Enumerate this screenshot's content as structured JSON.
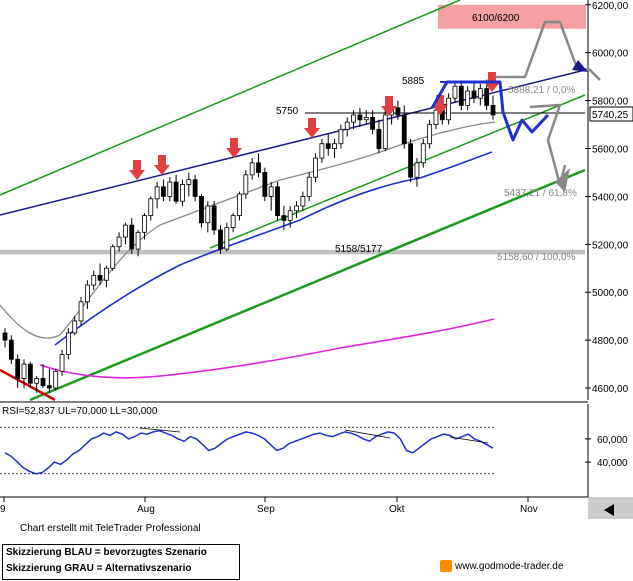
{
  "chart_data": [
    {
      "type": "line",
      "description_kind": "candlestick-price-chart",
      "x_ticks": [
        "9",
        "Aug",
        "Sep",
        "Okt",
        "Nov"
      ],
      "y_ticks": [
        "6200,00",
        "6000,00",
        "5800,00",
        "5600,00",
        "5400,00",
        "5200,00",
        "5000,00",
        "4800,00",
        "4600,00"
      ],
      "ylim": [
        4550,
        6220
      ],
      "last_price_label": "5740,25",
      "zones": [
        {
          "label": "6100/6200",
          "from": 6100,
          "to": 6200,
          "color": "#f08080"
        },
        {
          "label": "5158/5177",
          "from": 5158,
          "to": 5177,
          "color": "#c0c0c0"
        }
      ],
      "level_labels": [
        {
          "label": "5885",
          "value": 5885
        },
        {
          "label": "5750",
          "value": 5750
        }
      ],
      "fib_labels": [
        {
          "label": "5888,21 / 0,0%",
          "value": 5888.21
        },
        {
          "label": "5437,21 / 61,8%",
          "value": 5437.21
        },
        {
          "label": "5158,60 / 100,0%",
          "value": 5158.6
        }
      ],
      "moving_averages": [
        {
          "name": "grey",
          "color": "#888888"
        },
        {
          "name": "blue",
          "color": "#1f2fd0"
        },
        {
          "name": "magenta",
          "color": "#e020e0"
        }
      ],
      "candles": [
        {
          "o": 4830,
          "h": 4850,
          "l": 4770,
          "c": 4800
        },
        {
          "o": 4800,
          "h": 4820,
          "l": 4700,
          "c": 4720
        },
        {
          "o": 4720,
          "h": 4740,
          "l": 4600,
          "c": 4640
        },
        {
          "o": 4640,
          "h": 4720,
          "l": 4600,
          "c": 4700
        },
        {
          "o": 4700,
          "h": 4710,
          "l": 4600,
          "c": 4620
        },
        {
          "o": 4620,
          "h": 4650,
          "l": 4580,
          "c": 4640
        },
        {
          "o": 4640,
          "h": 4700,
          "l": 4600,
          "c": 4610
        },
        {
          "o": 4610,
          "h": 4680,
          "l": 4580,
          "c": 4600
        },
        {
          "o": 4600,
          "h": 4680,
          "l": 4590,
          "c": 4670
        },
        {
          "o": 4670,
          "h": 4760,
          "l": 4650,
          "c": 4740
        },
        {
          "o": 4740,
          "h": 4850,
          "l": 4720,
          "c": 4830
        },
        {
          "o": 4830,
          "h": 4900,
          "l": 4820,
          "c": 4880
        },
        {
          "o": 4880,
          "h": 4980,
          "l": 4860,
          "c": 4960
        },
        {
          "o": 4960,
          "h": 5050,
          "l": 4930,
          "c": 5030
        },
        {
          "o": 5030,
          "h": 5090,
          "l": 5010,
          "c": 5070
        },
        {
          "o": 5070,
          "h": 5120,
          "l": 5030,
          "c": 5050
        },
        {
          "o": 5050,
          "h": 5110,
          "l": 5020,
          "c": 5100
        },
        {
          "o": 5100,
          "h": 5200,
          "l": 5090,
          "c": 5190
        },
        {
          "o": 5190,
          "h": 5250,
          "l": 5170,
          "c": 5230
        },
        {
          "o": 5230,
          "h": 5290,
          "l": 5200,
          "c": 5280
        },
        {
          "o": 5280,
          "h": 5310,
          "l": 5160,
          "c": 5180
        },
        {
          "o": 5180,
          "h": 5260,
          "l": 5150,
          "c": 5250
        },
        {
          "o": 5250,
          "h": 5330,
          "l": 5220,
          "c": 5320
        },
        {
          "o": 5320,
          "h": 5400,
          "l": 5300,
          "c": 5390
        },
        {
          "o": 5390,
          "h": 5460,
          "l": 5350,
          "c": 5440
        },
        {
          "o": 5440,
          "h": 5470,
          "l": 5380,
          "c": 5400
        },
        {
          "o": 5400,
          "h": 5480,
          "l": 5380,
          "c": 5460
        },
        {
          "o": 5460,
          "h": 5490,
          "l": 5370,
          "c": 5380
        },
        {
          "o": 5380,
          "h": 5470,
          "l": 5360,
          "c": 5450
        },
        {
          "o": 5450,
          "h": 5500,
          "l": 5400,
          "c": 5470
        },
        {
          "o": 5470,
          "h": 5490,
          "l": 5380,
          "c": 5400
        },
        {
          "o": 5400,
          "h": 5410,
          "l": 5270,
          "c": 5290
        },
        {
          "o": 5290,
          "h": 5380,
          "l": 5250,
          "c": 5360
        },
        {
          "o": 5360,
          "h": 5380,
          "l": 5240,
          "c": 5260
        },
        {
          "o": 5260,
          "h": 5280,
          "l": 5160,
          "c": 5180
        },
        {
          "o": 5180,
          "h": 5290,
          "l": 5170,
          "c": 5270
        },
        {
          "o": 5270,
          "h": 5330,
          "l": 5250,
          "c": 5320
        },
        {
          "o": 5320,
          "h": 5420,
          "l": 5300,
          "c": 5410
        },
        {
          "o": 5410,
          "h": 5510,
          "l": 5390,
          "c": 5490
        },
        {
          "o": 5490,
          "h": 5560,
          "l": 5470,
          "c": 5540
        },
        {
          "o": 5540,
          "h": 5580,
          "l": 5480,
          "c": 5500
        },
        {
          "o": 5500,
          "h": 5520,
          "l": 5380,
          "c": 5400
        },
        {
          "o": 5400,
          "h": 5460,
          "l": 5340,
          "c": 5440
        },
        {
          "o": 5440,
          "h": 5460,
          "l": 5300,
          "c": 5320
        },
        {
          "o": 5320,
          "h": 5360,
          "l": 5260,
          "c": 5300
        },
        {
          "o": 5300,
          "h": 5360,
          "l": 5270,
          "c": 5340
        },
        {
          "o": 5340,
          "h": 5380,
          "l": 5310,
          "c": 5360
        },
        {
          "o": 5360,
          "h": 5420,
          "l": 5340,
          "c": 5400
        },
        {
          "o": 5400,
          "h": 5500,
          "l": 5380,
          "c": 5480
        },
        {
          "o": 5480,
          "h": 5580,
          "l": 5460,
          "c": 5560
        },
        {
          "o": 5560,
          "h": 5640,
          "l": 5540,
          "c": 5620
        },
        {
          "o": 5620,
          "h": 5660,
          "l": 5570,
          "c": 5600
        },
        {
          "o": 5600,
          "h": 5640,
          "l": 5560,
          "c": 5620
        },
        {
          "o": 5620,
          "h": 5700,
          "l": 5600,
          "c": 5680
        },
        {
          "o": 5680,
          "h": 5730,
          "l": 5650,
          "c": 5710
        },
        {
          "o": 5710,
          "h": 5760,
          "l": 5680,
          "c": 5740
        },
        {
          "o": 5740,
          "h": 5770,
          "l": 5690,
          "c": 5720
        },
        {
          "o": 5720,
          "h": 5760,
          "l": 5700,
          "c": 5730
        },
        {
          "o": 5730,
          "h": 5760,
          "l": 5660,
          "c": 5680
        },
        {
          "o": 5680,
          "h": 5720,
          "l": 5580,
          "c": 5600
        },
        {
          "o": 5600,
          "h": 5760,
          "l": 5590,
          "c": 5740
        },
        {
          "o": 5740,
          "h": 5790,
          "l": 5700,
          "c": 5770
        },
        {
          "o": 5770,
          "h": 5800,
          "l": 5720,
          "c": 5740
        },
        {
          "o": 5740,
          "h": 5780,
          "l": 5600,
          "c": 5620
        },
        {
          "o": 5620,
          "h": 5640,
          "l": 5460,
          "c": 5480
        },
        {
          "o": 5480,
          "h": 5560,
          "l": 5440,
          "c": 5540
        },
        {
          "o": 5540,
          "h": 5640,
          "l": 5520,
          "c": 5620
        },
        {
          "o": 5620,
          "h": 5720,
          "l": 5600,
          "c": 5700
        },
        {
          "o": 5700,
          "h": 5780,
          "l": 5680,
          "c": 5760
        },
        {
          "o": 5760,
          "h": 5800,
          "l": 5700,
          "c": 5720
        },
        {
          "o": 5720,
          "h": 5830,
          "l": 5700,
          "c": 5810
        },
        {
          "o": 5810,
          "h": 5880,
          "l": 5790,
          "c": 5860
        },
        {
          "o": 5860,
          "h": 5880,
          "l": 5760,
          "c": 5780
        },
        {
          "o": 5780,
          "h": 5860,
          "l": 5760,
          "c": 5840
        },
        {
          "o": 5840,
          "h": 5880,
          "l": 5790,
          "c": 5810
        },
        {
          "o": 5810,
          "h": 5870,
          "l": 5780,
          "c": 5850
        },
        {
          "o": 5850,
          "h": 5888,
          "l": 5760,
          "c": 5780
        },
        {
          "o": 5780,
          "h": 5820,
          "l": 5720,
          "c": 5740
        }
      ]
    },
    {
      "type": "line",
      "title": "RSI=52,837 UL=70,000 LL=30,000",
      "y_ticks": [
        "60,000",
        "40,000"
      ],
      "ylim": [
        10,
        90
      ],
      "upper_level": 70,
      "lower_level": 30,
      "series": [
        {
          "values": [
            48,
            45,
            40,
            35,
            32,
            30,
            31,
            35,
            40,
            38,
            42,
            47,
            50,
            55,
            60,
            62,
            65,
            63,
            66,
            64,
            60,
            62,
            65,
            64,
            66,
            67,
            65,
            63,
            60,
            58,
            62,
            60,
            55,
            50,
            52,
            56,
            60,
            62,
            64,
            66,
            65,
            63,
            60,
            55,
            50,
            52,
            56,
            58,
            60,
            62,
            64,
            65,
            63,
            62,
            64,
            66,
            65,
            63,
            60,
            58,
            62,
            64,
            66,
            65,
            60,
            50,
            48,
            52,
            56,
            60,
            62,
            64,
            63,
            60,
            62,
            64,
            60,
            58,
            55,
            52
          ]
        }
      ]
    }
  ],
  "footer": {
    "credit": "Chart erstellt mit TeleTrader Professional",
    "legend_blue": "Skizzierung BLAU = bevorzugtes Szenario",
    "legend_grey": "Skizzierung GRAU = Alternativszenario",
    "website": "www.godmode-trader.de"
  },
  "colors": {
    "trend_green": "#1a9a1a",
    "trend_navy": "#1a1a8a",
    "scenario_blue": "#1f2fd0",
    "scenario_grey": "#888888",
    "arrow_red": "#e04040",
    "downtrend_red": "#d00000"
  }
}
